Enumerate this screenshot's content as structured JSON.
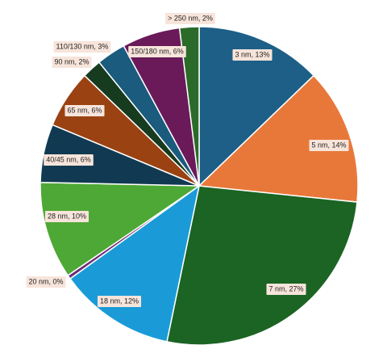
{
  "chart_data": {
    "type": "pie",
    "values": [
      13,
      14,
      27,
      12,
      0.4,
      10,
      6,
      6,
      2,
      3,
      6,
      2
    ],
    "value_labels": [
      "3 nm, 13%",
      "5 nm, 14%",
      "7 nm, 27%",
      "18 nm, 12%",
      "20 nm, 0%",
      "28 nm, 10%",
      "40/45 nm, 6%",
      "65 nm, 6%",
      "90 nm, 2%",
      "110/130 nm, 3%",
      "150/180 nm, 6%",
      "> 250 nm, 2%"
    ],
    "colors": [
      "#1d5f86",
      "#e8783a",
      "#1b6424",
      "#1a9bd8",
      "#6c2d7a",
      "#4ea835",
      "#113a52",
      "#9a4212",
      "#173b1f",
      "#1a5b7e",
      "#6a1a58",
      "#2b6b2a"
    ]
  }
}
